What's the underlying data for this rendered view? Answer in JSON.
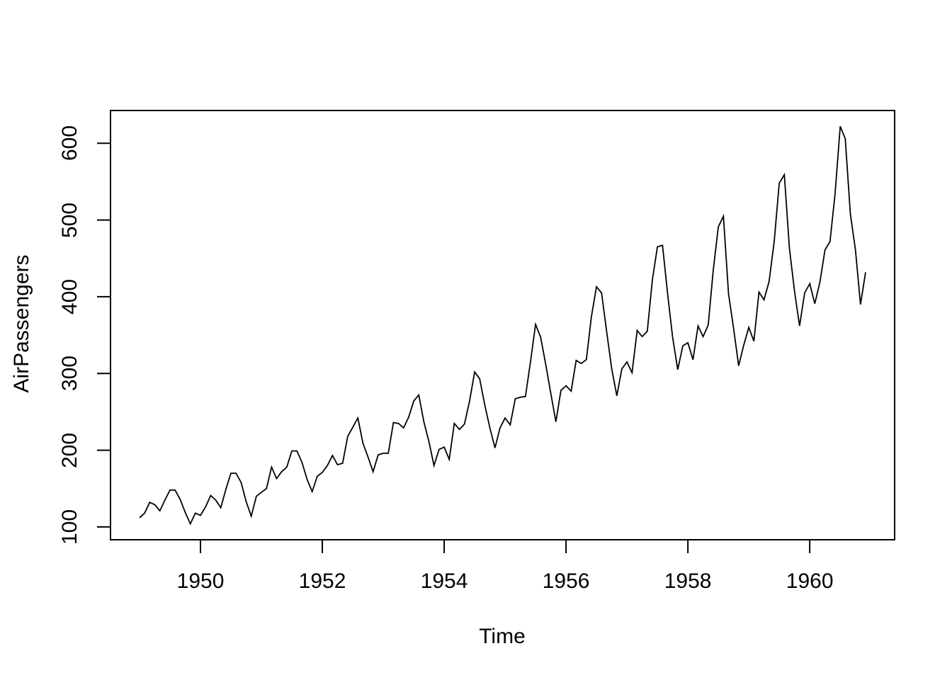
{
  "chart_data": {
    "type": "line",
    "title": "",
    "xlabel": "Time",
    "ylabel": "AirPassengers",
    "x_start": 1949,
    "frequency": 12,
    "series": [
      {
        "name": "AirPassengers",
        "values": [
          112,
          118,
          132,
          129,
          121,
          135,
          148,
          148,
          136,
          119,
          104,
          118,
          115,
          126,
          141,
          135,
          125,
          149,
          170,
          170,
          158,
          133,
          114,
          140,
          145,
          150,
          178,
          163,
          172,
          178,
          199,
          199,
          184,
          162,
          146,
          166,
          171,
          180,
          193,
          181,
          183,
          218,
          230,
          242,
          209,
          191,
          172,
          194,
          196,
          196,
          236,
          235,
          229,
          243,
          264,
          272,
          237,
          211,
          180,
          201,
          204,
          188,
          235,
          227,
          234,
          264,
          302,
          293,
          259,
          229,
          203,
          229,
          242,
          233,
          267,
          269,
          270,
          315,
          364,
          347,
          312,
          274,
          237,
          278,
          284,
          277,
          317,
          313,
          318,
          374,
          413,
          405,
          355,
          306,
          271,
          306,
          315,
          301,
          356,
          348,
          355,
          422,
          465,
          467,
          404,
          347,
          305,
          336,
          340,
          318,
          362,
          348,
          363,
          435,
          491,
          505,
          404,
          359,
          310,
          337,
          360,
          342,
          406,
          396,
          420,
          472,
          548,
          559,
          463,
          407,
          362,
          405,
          417,
          391,
          419,
          461,
          472,
          535,
          622,
          606,
          508,
          461,
          390,
          432
        ]
      }
    ],
    "x_ticks": [
      1950,
      1952,
      1954,
      1956,
      1958,
      1960
    ],
    "x_tick_labels": [
      "1950",
      "1952",
      "1954",
      "1956",
      "1958",
      "1960"
    ],
    "y_ticks": [
      100,
      200,
      300,
      400,
      500,
      600
    ],
    "y_tick_labels": [
      "100",
      "200",
      "300",
      "400",
      "500",
      "600"
    ],
    "xlim": [
      1948.5233,
      1961.3933
    ],
    "ylim": [
      83.28,
      642.72
    ],
    "grid": false,
    "legend": "none",
    "line_color": "#000000",
    "axis_color": "#000000",
    "background_color": "#ffffff"
  }
}
